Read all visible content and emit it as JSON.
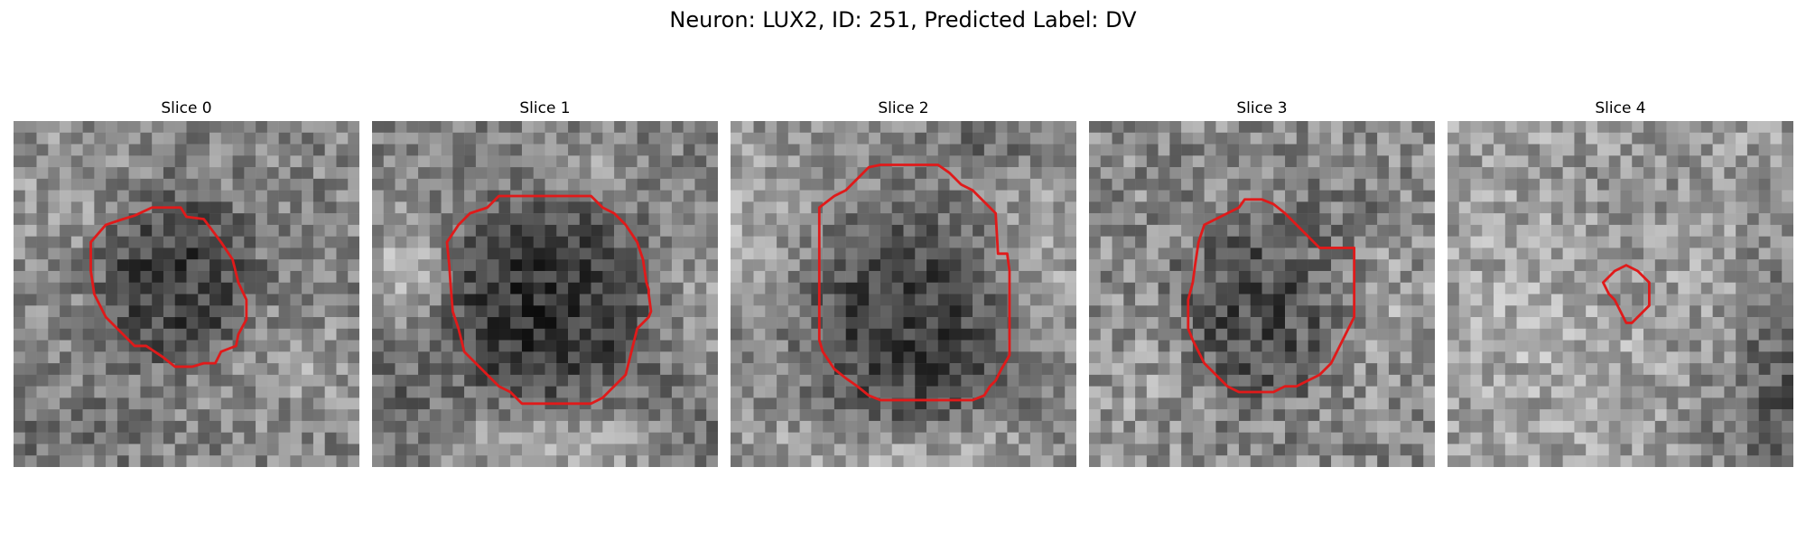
{
  "figure": {
    "title": "Neuron: LUX2, ID: 251, Predicted Label: DV"
  },
  "panels": [
    {
      "title": "Slice 0"
    },
    {
      "title": "Slice 1"
    },
    {
      "title": "Slice 2"
    },
    {
      "title": "Slice 3"
    },
    {
      "title": "Slice 4"
    }
  ],
  "colors": {
    "contour": "#e01a1a",
    "background": "#ffffff"
  }
}
